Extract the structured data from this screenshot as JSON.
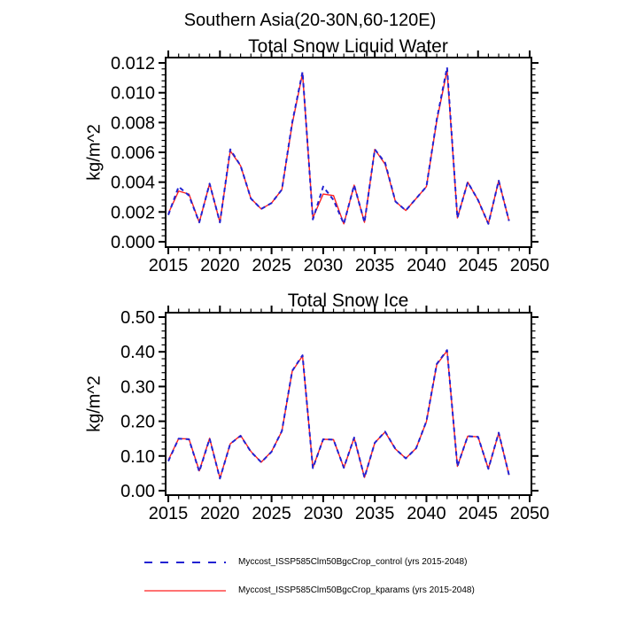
{
  "page_title": "Southern Asia(20-30N,60-120E)",
  "colors": {
    "control_blue": "#2222d2",
    "kparams_red": "#ff1f1f",
    "axis_black": "#000000",
    "background": "#ffffff"
  },
  "legend": [
    {
      "label": "Myccost_ISSP585Clm50BgcCrop_control (yrs 2015-2048)",
      "style": "dashed",
      "color": "#2222d2"
    },
    {
      "label": "Myccost_ISSP585Clm50BgcCrop_kparams (yrs 2015-2048)",
      "style": "solid",
      "color": "#ff1f1f"
    }
  ],
  "chart_data": [
    {
      "id": "total-snow-liquid-water",
      "type": "line",
      "title": "Total Snow Liquid Water",
      "ylabel": "kg/m^2",
      "xlabel": "",
      "grid": false,
      "xlim": [
        2014.74,
        2050.17
      ],
      "ylim": [
        -0.00036,
        0.01236
      ],
      "xticks": {
        "major": [
          2015,
          2020,
          2025,
          2030,
          2035,
          2040,
          2045,
          2050
        ],
        "labels": [
          "2015",
          "2020",
          "2025",
          "2030",
          "2035",
          "2040",
          "2045",
          "2050"
        ],
        "minor_step": 1
      },
      "yticks": {
        "major": [
          0,
          0.002,
          0.004,
          0.006,
          0.008,
          0.01,
          0.012
        ],
        "labels": [
          "0.000",
          "0.002",
          "0.004",
          "0.006",
          "0.008",
          "0.010",
          "0.012"
        ],
        "minor_step": 0.0004
      },
      "x": [
        2015,
        2016,
        2017,
        2018,
        2019,
        2020,
        2021,
        2022,
        2023,
        2024,
        2025,
        2026,
        2027,
        2028,
        2029,
        2030,
        2031,
        2032,
        2033,
        2034,
        2035,
        2036,
        2037,
        2038,
        2039,
        2040,
        2041,
        2042,
        2043,
        2044,
        2045,
        2046,
        2047,
        2048
      ],
      "series": [
        {
          "key": "control",
          "name": "Myccost_ISSP585Clm50BgcCrop_control",
          "style": "dashed",
          "color": "#2222d2",
          "values": [
            0.0018,
            0.0037,
            0.0031,
            0.0013,
            0.0039,
            0.0013,
            0.0062,
            0.0051,
            0.0029,
            0.0022,
            0.0026,
            0.0035,
            0.008,
            0.0114,
            0.0015,
            0.0037,
            0.0028,
            0.0012,
            0.0038,
            0.0013,
            0.0062,
            0.0053,
            0.0027,
            0.0021,
            0.0029,
            0.0037,
            0.0082,
            0.0117,
            0.0016,
            0.004,
            0.0028,
            0.0012,
            0.0041,
            0.0014
          ]
        },
        {
          "key": "kparams",
          "name": "Myccost_ISSP585Clm50BgcCrop_kparams",
          "style": "solid",
          "color": "#ff1f1f",
          "values": [
            0.0019,
            0.0034,
            0.0032,
            0.0013,
            0.0039,
            0.0013,
            0.0061,
            0.0051,
            0.0029,
            0.0022,
            0.0026,
            0.0035,
            0.0079,
            0.0113,
            0.0016,
            0.0032,
            0.0031,
            0.0012,
            0.0038,
            0.0013,
            0.0062,
            0.0052,
            0.0027,
            0.0021,
            0.0029,
            0.0037,
            0.0081,
            0.0115,
            0.0016,
            0.004,
            0.0028,
            0.0012,
            0.0041,
            0.0014
          ]
        }
      ]
    },
    {
      "id": "total-snow-ice",
      "type": "line",
      "title": "Total Snow Ice",
      "ylabel": "kg/m^2",
      "xlabel": "",
      "grid": false,
      "xlim": [
        2014.74,
        2050.17
      ],
      "ylim": [
        -0.0128,
        0.5128
      ],
      "xticks": {
        "major": [
          2015,
          2020,
          2025,
          2030,
          2035,
          2040,
          2045,
          2050
        ],
        "labels": [
          "2015",
          "2020",
          "2025",
          "2030",
          "2035",
          "2040",
          "2045",
          "2050"
        ],
        "minor_step": 1
      },
      "yticks": {
        "major": [
          0,
          0.1,
          0.2,
          0.3,
          0.4,
          0.5
        ],
        "labels": [
          "0.00",
          "0.10",
          "0.20",
          "0.30",
          "0.40",
          "0.50"
        ],
        "minor_step": 0.02
      },
      "x": [
        2015,
        2016,
        2017,
        2018,
        2019,
        2020,
        2021,
        2022,
        2023,
        2024,
        2025,
        2026,
        2027,
        2028,
        2029,
        2030,
        2031,
        2032,
        2033,
        2034,
        2035,
        2036,
        2037,
        2038,
        2039,
        2040,
        2041,
        2042,
        2043,
        2044,
        2045,
        2046,
        2047,
        2048
      ],
      "series": [
        {
          "key": "control",
          "name": "Myccost_ISSP585Clm50BgcCrop_control",
          "style": "dashed",
          "color": "#2222d2",
          "values": [
            0.085,
            0.15,
            0.148,
            0.055,
            0.15,
            0.035,
            0.135,
            0.158,
            0.112,
            0.082,
            0.112,
            0.172,
            0.345,
            0.39,
            0.065,
            0.148,
            0.147,
            0.066,
            0.153,
            0.038,
            0.138,
            0.17,
            0.12,
            0.093,
            0.122,
            0.2,
            0.365,
            0.405,
            0.07,
            0.157,
            0.155,
            0.063,
            0.167,
            0.045
          ]
        },
        {
          "key": "kparams",
          "name": "Myccost_ISSP585Clm50BgcCrop_kparams",
          "style": "solid",
          "color": "#ff1f1f",
          "values": [
            0.088,
            0.15,
            0.149,
            0.057,
            0.151,
            0.036,
            0.135,
            0.159,
            0.113,
            0.082,
            0.113,
            0.171,
            0.344,
            0.388,
            0.066,
            0.148,
            0.147,
            0.066,
            0.152,
            0.038,
            0.138,
            0.169,
            0.12,
            0.093,
            0.122,
            0.199,
            0.363,
            0.403,
            0.07,
            0.157,
            0.155,
            0.063,
            0.166,
            0.045
          ]
        }
      ]
    }
  ]
}
